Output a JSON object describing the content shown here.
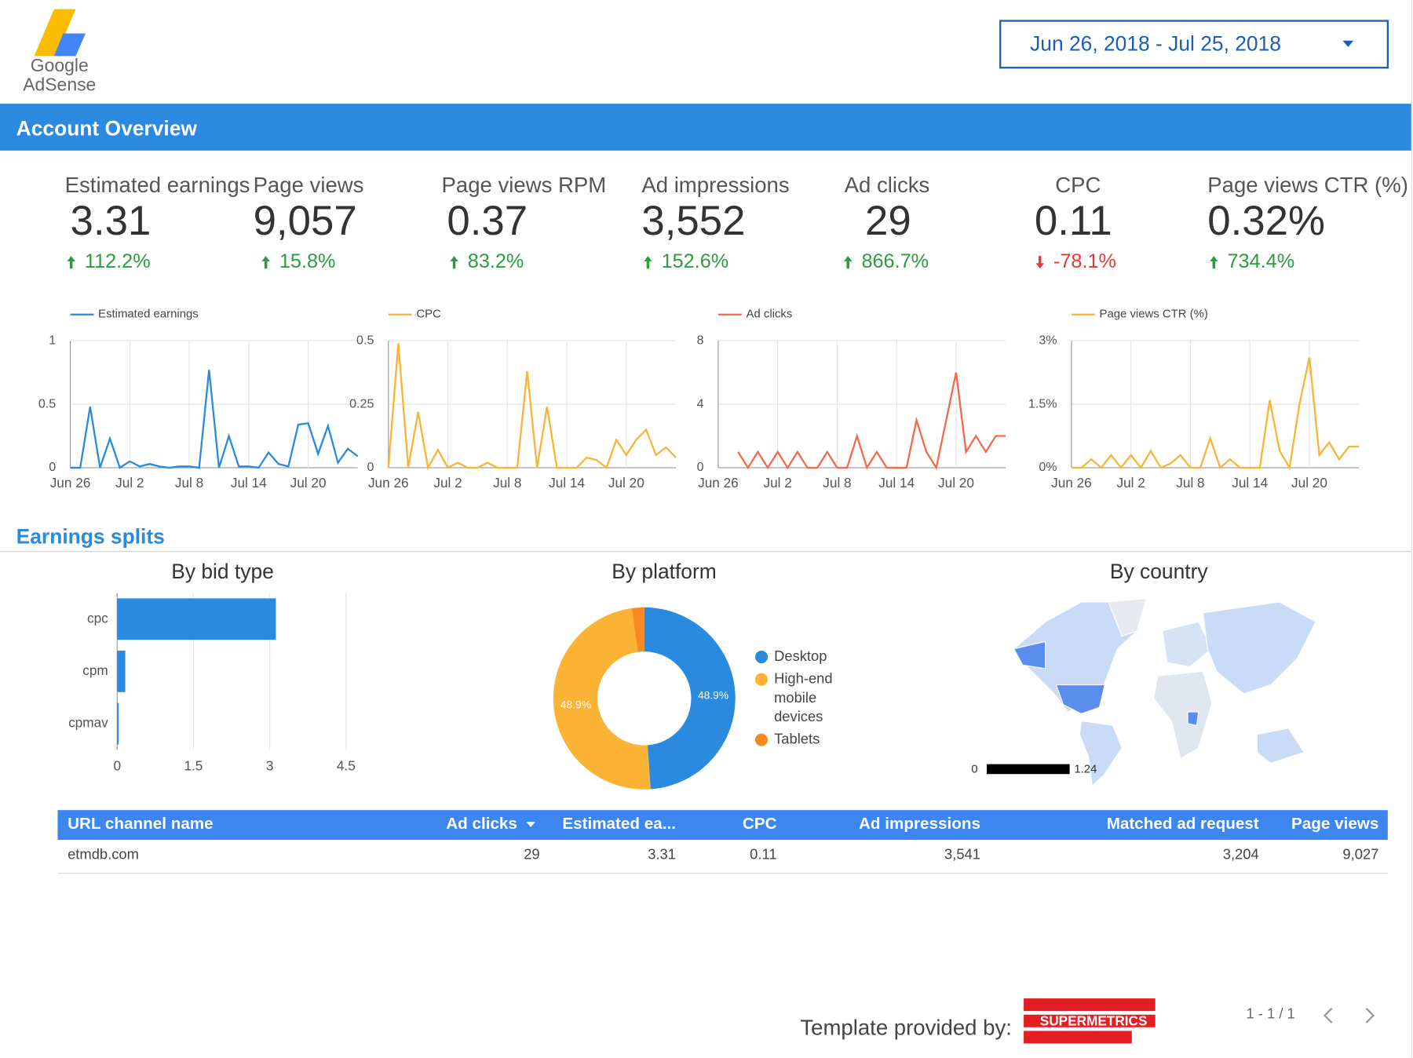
{
  "header": {
    "logo": [
      "Google",
      "AdSense"
    ],
    "date_range": "Jun 26, 2018 - Jul 25, 2018"
  },
  "sections": [
    "Account Overview",
    "Earnings splits"
  ],
  "scorecards": [
    {
      "label": "Estimated earnings",
      "value": "3.31",
      "change": "112.2%",
      "direction": "up"
    },
    {
      "label": "Page views",
      "value": "9,057",
      "change": "15.8%",
      "direction": "up"
    },
    {
      "label": "Page views RPM",
      "value": "0.37",
      "change": "83.2%",
      "direction": "up"
    },
    {
      "label": "Ad impressions",
      "value": "3,552",
      "change": "152.6%",
      "direction": "up"
    },
    {
      "label": "Ad clicks",
      "value": "29",
      "change": "866.7%",
      "direction": "up"
    },
    {
      "label": "CPC",
      "value": "0.11",
      "change": "-78.1%",
      "direction": "down"
    },
    {
      "label": "Page views CTR (%)",
      "value": "0.32%",
      "change": "734.4%",
      "direction": "up"
    }
  ],
  "chart_data": [
    {
      "type": "line",
      "categories": [
        "Jun 26",
        null,
        null,
        null,
        null,
        null,
        "Jul 2",
        null,
        null,
        null,
        null,
        null,
        "Jul 8",
        null,
        null,
        null,
        null,
        null,
        "Jul 14",
        null,
        null,
        null,
        null,
        null,
        "Jul 20",
        null,
        null,
        null,
        null,
        null
      ],
      "series": [
        {
          "name": "Estimated earnings",
          "color": "#2a8ae0",
          "values": [
            0,
            0,
            0.48,
            0,
            0.23,
            0,
            0.05,
            0.01,
            0.03,
            0.01,
            0,
            0.01,
            0.01,
            0,
            0.77,
            0,
            0.25,
            0.01,
            0.01,
            0,
            0.12,
            0.03,
            0.01,
            0.34,
            0.35,
            0.11,
            0.33,
            0.04,
            0.15,
            0.09
          ]
        }
      ],
      "ylim": [
        0,
        1
      ],
      "yticks": [
        0,
        0.5,
        1
      ],
      "grid": true
    },
    {
      "type": "line",
      "categories": [
        "Jun 26",
        null,
        null,
        null,
        null,
        null,
        "Jul 2",
        null,
        null,
        null,
        null,
        null,
        "Jul 8",
        null,
        null,
        null,
        null,
        null,
        "Jul 14",
        null,
        null,
        null,
        null,
        null,
        "Jul 20",
        null,
        null,
        null,
        null,
        null
      ],
      "series": [
        {
          "name": "CPC",
          "color": "#fbb335",
          "values": [
            0,
            0.49,
            0,
            0.22,
            0,
            0.07,
            0,
            0.02,
            0,
            0,
            0.02,
            0,
            0,
            0,
            0.38,
            0,
            0.24,
            0,
            0,
            0,
            0.04,
            0.03,
            0,
            0.11,
            0.05,
            0.11,
            0.15,
            0.05,
            0.08,
            0.04
          ]
        }
      ],
      "ylim": [
        0,
        0.5
      ],
      "yticks": [
        0,
        0.25,
        0.5
      ],
      "grid": true
    },
    {
      "type": "line",
      "categories": [
        "Jun 26",
        null,
        null,
        null,
        null,
        null,
        "Jul 2",
        null,
        null,
        null,
        null,
        null,
        "Jul 8",
        null,
        null,
        null,
        null,
        null,
        "Jul 14",
        null,
        null,
        null,
        null,
        null,
        "Jul 20",
        null,
        null,
        null,
        null,
        null
      ],
      "series": [
        {
          "name": "Ad clicks",
          "color": "#f26a4b",
          "values": [
            null,
            null,
            1,
            0,
            1,
            0,
            1,
            0,
            1,
            0,
            0,
            1,
            0,
            0,
            2,
            0,
            1,
            0,
            0,
            0,
            3,
            1,
            0,
            3,
            6,
            1,
            2,
            1,
            2,
            2
          ]
        }
      ],
      "ylim": [
        0,
        8
      ],
      "yticks": [
        0,
        4,
        8
      ],
      "grid": true
    },
    {
      "type": "line",
      "categories": [
        "Jun 26",
        null,
        null,
        null,
        null,
        null,
        "Jul 2",
        null,
        null,
        null,
        null,
        null,
        "Jul 8",
        null,
        null,
        null,
        null,
        null,
        "Jul 14",
        null,
        null,
        null,
        null,
        null,
        "Jul 20",
        null,
        null,
        null,
        null,
        null
      ],
      "series": [
        {
          "name": "Page views CTR (%)",
          "color": "#fbb335",
          "values": [
            0,
            0,
            0.2,
            0,
            0.3,
            0,
            0.3,
            0,
            0.4,
            0,
            0.1,
            0.3,
            0,
            0,
            0.7,
            0,
            0.2,
            0,
            0,
            0,
            1.6,
            0.4,
            0,
            1.5,
            2.6,
            0.3,
            0.6,
            0.2,
            0.5,
            0.5
          ]
        }
      ],
      "ylim": [
        0,
        3
      ],
      "yticks": [
        {
          "value": 0,
          "label": "0%"
        },
        {
          "value": 1.5,
          "label": "1.5%"
        },
        {
          "value": 3,
          "label": "3%"
        }
      ],
      "grid": true
    },
    {
      "type": "bar",
      "orientation": "horizontal",
      "title": "By bid type",
      "categories": [
        "cpc",
        "cpm",
        "cpmav"
      ],
      "values": [
        3.12,
        0.16,
        0.03
      ],
      "color": "#2a8ae0",
      "xlim": [
        0,
        4.5
      ],
      "xticks": [
        0,
        1.5,
        3,
        4.5
      ],
      "grid": true
    },
    {
      "type": "donut",
      "title": "By platform",
      "categories": [
        "Desktop",
        "High-end mobile devices",
        "Tablets"
      ],
      "values": [
        48.9,
        48.9,
        2.2
      ],
      "value_labels": [
        "48.9%",
        "48.9%",
        null
      ],
      "colors": [
        "#2a8ae0",
        "#fbb335",
        "#f7891f"
      ],
      "legend": "right"
    },
    {
      "type": "geo",
      "title": "By country",
      "colorlim": [
        0,
        1.24
      ],
      "color": "#000000"
    }
  ],
  "table": {
    "columns": [
      "URL channel name",
      "Ad clicks",
      "Estimated ea...",
      "CPC",
      "Ad impressions",
      "Matched ad request",
      "Page views"
    ],
    "sorted_by": 1,
    "rows": [
      [
        "etmdb.com",
        "29",
        "3.31",
        "0.11",
        "3,541",
        "3,204",
        "9,027"
      ]
    ]
  },
  "footer": {
    "credit": "Template provided by:",
    "brand": "SUPERMETRICS",
    "pagination": "1 - 1 / 1"
  }
}
